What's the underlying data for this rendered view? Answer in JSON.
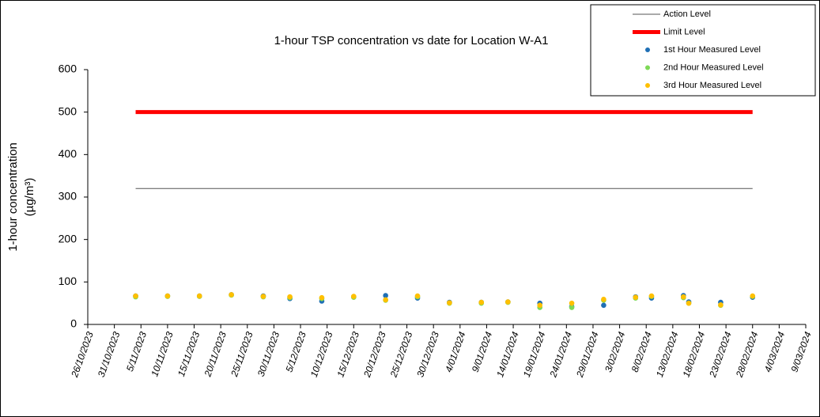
{
  "chart_data": {
    "type": "scatter",
    "title": "1-hour TSP concentration vs date for Location W-A1",
    "y_label": [
      "1-hour concentration",
      "(µg/m³)"
    ],
    "x": [
      "2023-11-04",
      "2023-11-10",
      "2023-11-16",
      "2023-11-22",
      "2023-11-28",
      "2023-12-03",
      "2023-12-09",
      "2023-12-15",
      "2023-12-21",
      "2023-12-27",
      "2024-01-02",
      "2024-01-08",
      "2024-01-13",
      "2024-01-19",
      "2024-01-25",
      "2024-01-31",
      "2024-02-06",
      "2024-02-09",
      "2024-02-15",
      "2024-02-16",
      "2024-02-22",
      "2024-02-28"
    ],
    "series": [
      {
        "name": "Action Level",
        "kind": "line",
        "color": "#555555",
        "x": [
          "2023-11-04",
          "2024-02-28"
        ],
        "values": [
          320,
          320
        ]
      },
      {
        "name": "Limit Level",
        "kind": "line",
        "color": "#ff0000",
        "x": [
          "2023-11-04",
          "2024-02-28"
        ],
        "values": [
          500,
          500
        ]
      },
      {
        "name": "1st Hour Measured Level",
        "kind": "points",
        "color": "#1f6fb5",
        "values": [
          67,
          67,
          67,
          70,
          67,
          61,
          55,
          65,
          68,
          62,
          52,
          52,
          53,
          50,
          42,
          45,
          65,
          62,
          68,
          53,
          52,
          64
        ]
      },
      {
        "name": "2nd Hour Measured Level",
        "kind": "points",
        "color": "#7ed957",
        "values": [
          65,
          66,
          66,
          69,
          65,
          63,
          61,
          64,
          57,
          65,
          50,
          50,
          52,
          40,
          40,
          57,
          62,
          66,
          63,
          50,
          45,
          66
        ]
      },
      {
        "name": "3rd Hour Measured Level",
        "kind": "points",
        "color": "#ffc000",
        "values": [
          67,
          67,
          67,
          70,
          66,
          65,
          63,
          66,
          58,
          67,
          51,
          52,
          53,
          45,
          50,
          59,
          64,
          67,
          65,
          50,
          46,
          67
        ]
      }
    ],
    "xlim": [
      "2023-10-26",
      "2024-03-09"
    ],
    "xticks": [
      {
        "value": "2023-10-26",
        "label": "26/10/2023"
      },
      {
        "value": "2023-10-31",
        "label": "31/10/2023"
      },
      {
        "value": "2023-11-05",
        "label": "5/11/2023"
      },
      {
        "value": "2023-11-10",
        "label": "10/11/2023"
      },
      {
        "value": "2023-11-15",
        "label": "15/11/2023"
      },
      {
        "value": "2023-11-20",
        "label": "20/11/2023"
      },
      {
        "value": "2023-11-25",
        "label": "25/11/2023"
      },
      {
        "value": "2023-11-30",
        "label": "30/11/2023"
      },
      {
        "value": "2023-12-05",
        "label": "5/12/2023"
      },
      {
        "value": "2023-12-10",
        "label": "10/12/2023"
      },
      {
        "value": "2023-12-15",
        "label": "15/12/2023"
      },
      {
        "value": "2023-12-20",
        "label": "20/12/2023"
      },
      {
        "value": "2023-12-25",
        "label": "25/12/2023"
      },
      {
        "value": "2023-12-30",
        "label": "30/12/2023"
      },
      {
        "value": "2024-01-04",
        "label": "4/01/2024"
      },
      {
        "value": "2024-01-09",
        "label": "9/01/2024"
      },
      {
        "value": "2024-01-14",
        "label": "14/01/2024"
      },
      {
        "value": "2024-01-19",
        "label": "19/01/2024"
      },
      {
        "value": "2024-01-24",
        "label": "24/01/2024"
      },
      {
        "value": "2024-01-29",
        "label": "29/01/2024"
      },
      {
        "value": "2024-02-03",
        "label": "3/02/2024"
      },
      {
        "value": "2024-02-08",
        "label": "8/02/2024"
      },
      {
        "value": "2024-02-13",
        "label": "13/02/2024"
      },
      {
        "value": "2024-02-18",
        "label": "18/02/2024"
      },
      {
        "value": "2024-02-23",
        "label": "23/02/2024"
      },
      {
        "value": "2024-02-28",
        "label": "28/02/2024"
      },
      {
        "value": "2024-03-04",
        "label": "4/03/2024"
      },
      {
        "value": "2024-03-09",
        "label": "9/03/2024"
      }
    ],
    "ylim": [
      0,
      600
    ],
    "yticks": [
      0,
      100,
      200,
      300,
      400,
      500,
      600
    ],
    "legend": "upper right"
  }
}
